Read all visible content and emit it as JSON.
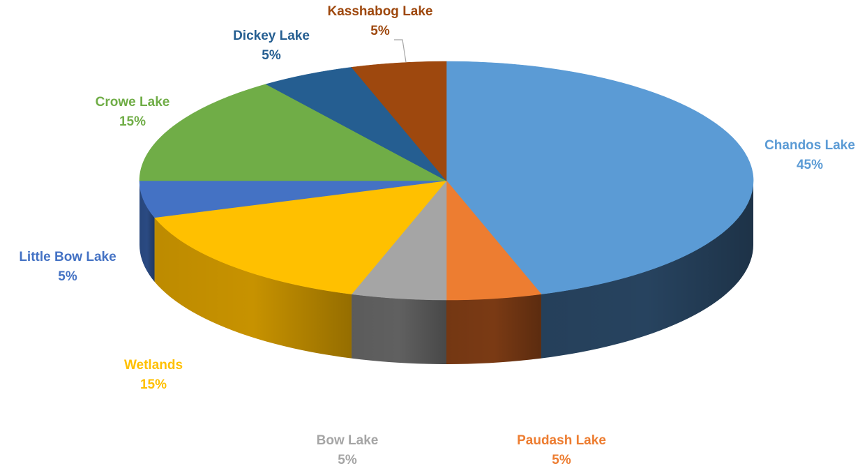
{
  "chart_data": {
    "type": "pie",
    "title": "",
    "three_d": true,
    "slices": [
      {
        "label": "Chandos Lake",
        "percent_label": "45%",
        "value": 45,
        "color": "#5b9bd5",
        "side_color": "#27435f"
      },
      {
        "label": "Paudash Lake",
        "percent_label": "5%",
        "value": 5,
        "color": "#ed7d31",
        "side_color": "#7a3a14"
      },
      {
        "label": "Bow Lake",
        "percent_label": "5%",
        "value": 5,
        "color": "#a5a5a5",
        "side_color": "#606060"
      },
      {
        "label": "Wetlands",
        "percent_label": "15%",
        "value": 15,
        "color": "#ffc000",
        "side_color": "#c79200"
      },
      {
        "label": "Little Bow Lake",
        "percent_label": "5%",
        "value": 5,
        "color": "#4472c4",
        "side_color": "#2a4a82"
      },
      {
        "label": "Crowe Lake",
        "percent_label": "15%",
        "value": 15,
        "color": "#70ad47",
        "side_color": "#4a7a2c"
      },
      {
        "label": "Dickey Lake",
        "percent_label": "5%",
        "value": 5,
        "color": "#255e91",
        "side_color": "#173a5a"
      },
      {
        "label": "Kasshabog Lake",
        "percent_label": "5%",
        "value": 5,
        "color": "#9e480e",
        "side_color": "#5e2a08"
      }
    ]
  }
}
